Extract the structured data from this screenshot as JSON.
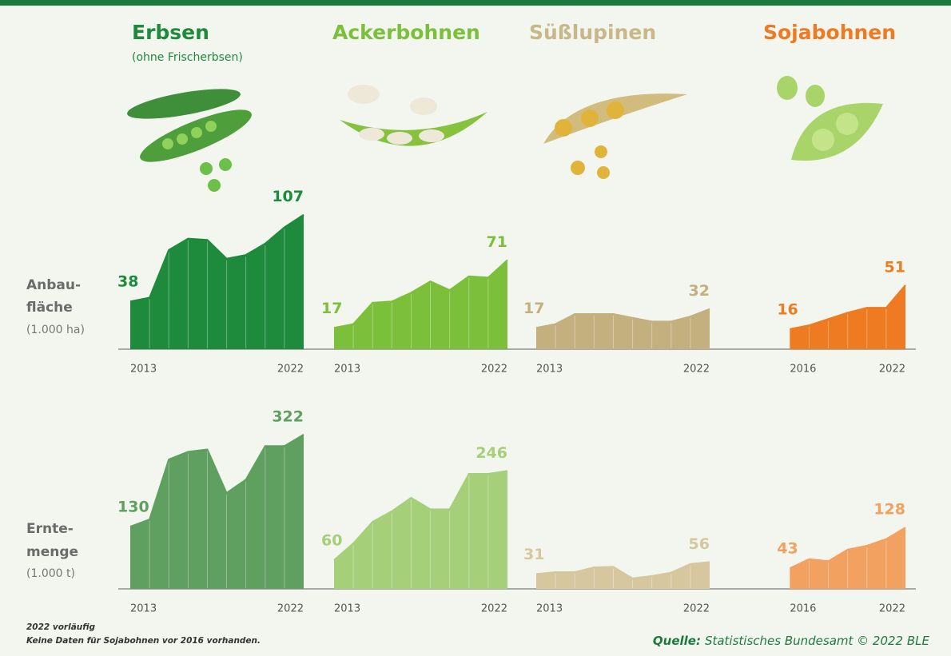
{
  "crops": [
    {
      "name": "Erbsen",
      "note": "(ohne Frischerbsen)",
      "color": "#1e8a3c"
    },
    {
      "name": "Ackerbohnen",
      "color": "#7cbf3a"
    },
    {
      "name": "Süßlupinen",
      "color": "#c8b889"
    },
    {
      "name": "Sojabohnen",
      "color": "#ee7a22"
    }
  ],
  "rows": [
    {
      "label": [
        "Anbau-",
        "fläche"
      ],
      "unit": "(1.000 ha)"
    },
    {
      "label": [
        "Ernte-",
        "menge"
      ],
      "unit": "(1.000 t)"
    }
  ],
  "chart_data": [
    {
      "type": "area",
      "x": [
        2013,
        2014,
        2015,
        2016,
        2017,
        2018,
        2019,
        2020,
        2021,
        2022
      ],
      "values": [
        38,
        41,
        79,
        88,
        87,
        72,
        75,
        84,
        97,
        107
      ],
      "color": "#1e8a3c",
      "xlim": [
        2013,
        2022
      ],
      "xticks": [
        2013,
        2022
      ],
      "ylim": [
        0,
        110
      ]
    },
    {
      "type": "area",
      "x": [
        2013,
        2014,
        2015,
        2016,
        2017,
        2018,
        2019,
        2020,
        2021,
        2022
      ],
      "values": [
        17,
        20,
        37,
        38,
        45,
        54,
        47,
        58,
        57,
        71
      ],
      "color": "#7cbf3a",
      "xlim": [
        2013,
        2022
      ],
      "xticks": [
        2013,
        2022
      ],
      "ylim": [
        0,
        110
      ]
    },
    {
      "type": "area",
      "x": [
        2013,
        2014,
        2015,
        2016,
        2017,
        2018,
        2019,
        2020,
        2021,
        2022
      ],
      "values": [
        17,
        20,
        28,
        28,
        28,
        25,
        22,
        22,
        26,
        32
      ],
      "color": "#c4b07e",
      "xlim": [
        2013,
        2022
      ],
      "xticks": [
        2013,
        2022
      ],
      "ylim": [
        0,
        110
      ]
    },
    {
      "type": "area",
      "x": [
        2016,
        2017,
        2018,
        2019,
        2020,
        2021,
        2022
      ],
      "values": [
        16,
        19,
        24,
        29,
        33,
        33,
        51
      ],
      "color": "#ee7a22",
      "xlim": [
        2016,
        2022
      ],
      "xticks": [
        2016,
        2022
      ],
      "ylim": [
        0,
        110
      ]
    },
    {
      "type": "area",
      "x": [
        2013,
        2014,
        2015,
        2016,
        2017,
        2018,
        2019,
        2020,
        2021,
        2022
      ],
      "values": [
        130,
        145,
        270,
        286,
        291,
        200,
        228,
        298,
        298,
        322
      ],
      "color": "#5f9f5f",
      "xlim": [
        2013,
        2022
      ],
      "xticks": [
        2013,
        2022
      ],
      "ylim": [
        0,
        330
      ]
    },
    {
      "type": "area",
      "x": [
        2013,
        2014,
        2015,
        2016,
        2017,
        2018,
        2019,
        2020,
        2021,
        2022
      ],
      "values": [
        60,
        95,
        140,
        162,
        190,
        166,
        166,
        240,
        240,
        246
      ],
      "color": "#a5cf78",
      "xlim": [
        2013,
        2022
      ],
      "xticks": [
        2013,
        2022
      ],
      "ylim": [
        0,
        330
      ]
    },
    {
      "type": "area",
      "x": [
        2013,
        2014,
        2015,
        2016,
        2017,
        2018,
        2019,
        2020,
        2021,
        2022
      ],
      "values": [
        31,
        35,
        35,
        45,
        46,
        22,
        27,
        34,
        52,
        56
      ],
      "color": "#d6c79e",
      "xlim": [
        2013,
        2022
      ],
      "xticks": [
        2013,
        2022
      ],
      "ylim": [
        0,
        330
      ]
    },
    {
      "type": "area",
      "x": [
        2016,
        2017,
        2018,
        2019,
        2020,
        2021,
        2022
      ],
      "values": [
        43,
        62,
        58,
        82,
        90,
        104,
        128
      ],
      "color": "#f2a160",
      "xlim": [
        2016,
        2022
      ],
      "xticks": [
        2016,
        2022
      ],
      "ylim": [
        0,
        330
      ]
    }
  ],
  "footnotes": [
    "2022 vorläufig",
    "Keine Daten für Sojabohnen vor 2016 vorhanden."
  ],
  "source": {
    "label": "Quelle:",
    "text": "Statistisches Bundesamt © 2022 BLE"
  }
}
